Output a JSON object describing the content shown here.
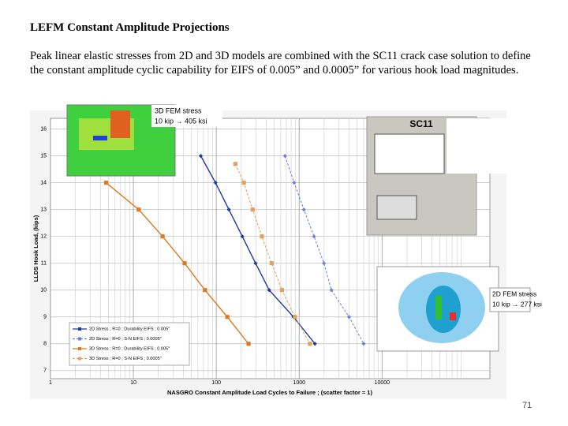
{
  "title": "LEFM Constant Amplitude Projections",
  "body": "Peak linear elastic stresses from 2D and 3D models are combined with the SC11 crack case solution to define the constant amplitude cyclic capability for EIFS of 0.005” and 0.0005” for various hook load magnitudes.",
  "page_number": "71",
  "insets": {
    "fem3d_label": "3D FEM stress",
    "fem3d_value": "10 kip → 405 ksi",
    "sc11_label": "SC11",
    "fem2d_label": "2D FEM stress",
    "fem2d_value": "10 kip → 277 ksi"
  },
  "chart_data": {
    "type": "line",
    "x_label": "NASGRO Constant Amplitude Load Cycles to Failure ; (scatter factor = 1)",
    "y_label": "LLDS Hook Load, (kips)",
    "xscale": "log",
    "xlim": [
      1,
      200000
    ],
    "xticks": [
      1,
      10,
      100,
      1000,
      10000
    ],
    "ylim": [
      6.7,
      16.4
    ],
    "yticks": [
      7,
      8,
      9,
      10,
      11,
      12,
      13,
      14,
      15,
      16
    ],
    "grid": true,
    "legend": "lower left",
    "series": [
      {
        "name": "2D Stress ; R=0 ; Durability EIFS ; 0.005\"",
        "color": "#1f3a9f",
        "line_style": "solid",
        "marker": "diamond",
        "x": [
          65,
          98,
          142,
          206,
          298,
          435,
          855,
          1550
        ],
        "values": [
          15,
          14,
          13,
          12,
          11,
          10,
          9,
          8
        ]
      },
      {
        "name": "2D Stress ; R=0 ; S-N EIFS ; 0.0005\"",
        "color": "#7080d8",
        "line_style": "dashed",
        "marker": "diamond",
        "x": [
          675,
          870,
          1140,
          1510,
          1990,
          2450,
          4000,
          6000
        ],
        "values": [
          15,
          14,
          13,
          12,
          11,
          10,
          9,
          8
        ]
      },
      {
        "name": "3D Stress ; R=0 ; Durability EIFS ; 0.005\"",
        "color": "#e07820",
        "line_style": "solid",
        "marker": "square",
        "x": [
          4.7,
          11.6,
          22.5,
          41.5,
          73,
          136,
          245
        ],
        "values": [
          14,
          13,
          12,
          11,
          10,
          9,
          8
        ]
      },
      {
        "name": "3D Stress ; R=0 ; S-N EIFS ; 0.0005\"",
        "color": "#e0a060",
        "line_style": "dashed",
        "marker": "square",
        "x": [
          170,
          215,
          275,
          355,
          465,
          620,
          890,
          1350
        ],
        "values": [
          14.7,
          14,
          13,
          12,
          11,
          10,
          9,
          8
        ]
      }
    ]
  }
}
